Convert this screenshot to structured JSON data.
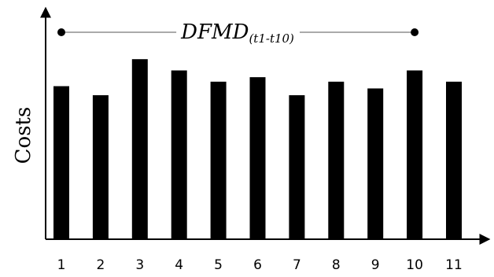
{
  "chart_data": {
    "type": "bar",
    "title": "",
    "xlabel": "",
    "ylabel": "Costs",
    "categories": [
      "1",
      "2",
      "3",
      "4",
      "5",
      "6",
      "7",
      "8",
      "9",
      "10",
      "11"
    ],
    "values": [
      68,
      64,
      80,
      75,
      70,
      72,
      64,
      70,
      67,
      75,
      70
    ],
    "ylim": [
      0,
      100
    ],
    "grid": false,
    "bar_color": "#000000",
    "annotation": {
      "text": "DFMD",
      "subscript": "(t1-t10)",
      "from_category": "1",
      "to_category": "10"
    }
  }
}
